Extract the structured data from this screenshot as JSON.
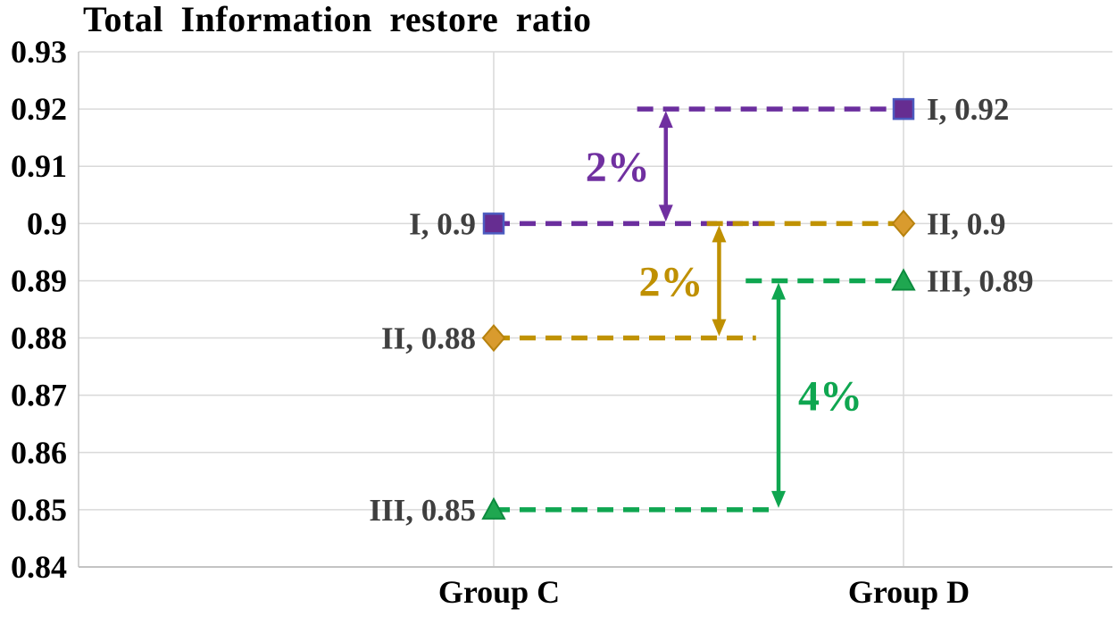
{
  "chart_data": {
    "type": "line",
    "title": "Total Information restore ratio",
    "subtitle": "",
    "categories": [
      "Group C",
      "Group D"
    ],
    "series": [
      {
        "name": "I",
        "values": [
          0.9,
          0.92
        ],
        "point_labels": [
          "I, 0.9",
          "I, 0.92"
        ],
        "marker": "square",
        "color": "#6B2E9E",
        "marker_fill": "#662D91",
        "marker_stroke": "#4C5BC0"
      },
      {
        "name": "II",
        "values": [
          0.88,
          0.9
        ],
        "point_labels": [
          "II, 0.88",
          "II, 0.9"
        ],
        "marker": "diamond",
        "color": "#C09202",
        "marker_fill": "#D99B2E",
        "marker_stroke": "#B7820E"
      },
      {
        "name": "III",
        "values": [
          0.85,
          0.89
        ],
        "point_labels": [
          "III, 0.85",
          "III, 0.89"
        ],
        "marker": "triangle",
        "color": "#0FA650",
        "marker_fill": "#1FA750",
        "marker_stroke": "#0C8B3E"
      }
    ],
    "annotations": [
      {
        "text": "2%",
        "between": [
          0.92,
          0.9
        ],
        "color": "#7030A0",
        "label_side": "left"
      },
      {
        "text": "2%",
        "between": [
          0.9,
          0.88
        ],
        "color": "#BF9000",
        "label_side": "left"
      },
      {
        "text": "4%",
        "between": [
          0.89,
          0.85
        ],
        "color": "#0FA650",
        "label_side": "right"
      }
    ],
    "y_axis": {
      "min": 0.84,
      "max": 0.93,
      "tick_step": 0.01,
      "tick_labels": [
        "0.93",
        "0.92",
        "0.91",
        "0.9",
        "0.89",
        "0.88",
        "0.87",
        "0.86",
        "0.85",
        "0.84"
      ]
    },
    "x_axis": {
      "tick_labels": [
        "Group C",
        "Group D"
      ]
    },
    "grid": true,
    "legend": "none",
    "line_style": "dashed",
    "colors": {
      "gridline": "#D9D9D9",
      "axis_border": "#C3C3C3",
      "axis_text": "#000000",
      "data_label_text": "#3F3F3F"
    }
  }
}
